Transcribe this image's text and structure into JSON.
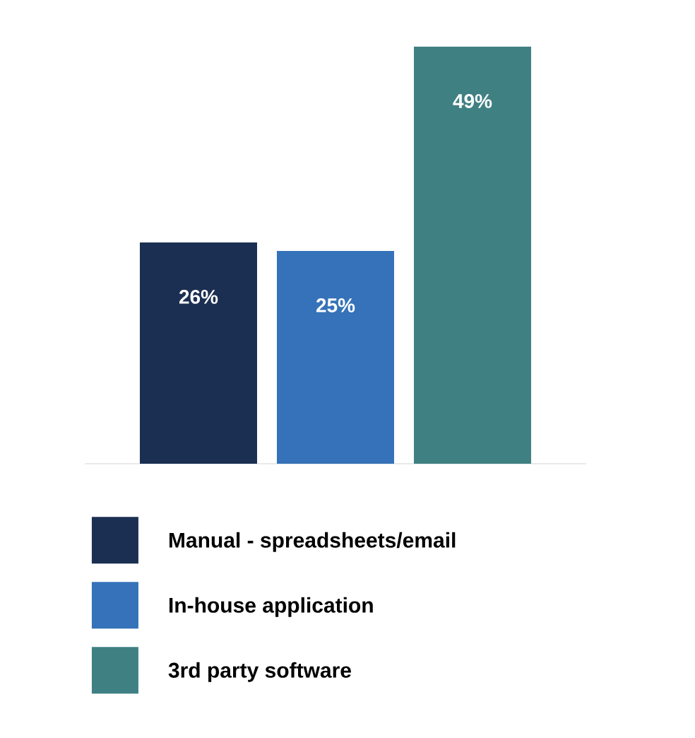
{
  "chart_data": {
    "type": "bar",
    "categories": [
      null
    ],
    "series": [
      {
        "name": "Manual - spreadsheets/email",
        "color": "#1b2f52",
        "values": [
          26
        ],
        "value_labels": [
          "26%"
        ]
      },
      {
        "name": "In-house application",
        "color": "#3572b9",
        "values": [
          25
        ],
        "value_labels": [
          "25%"
        ]
      },
      {
        "name": "3rd party software",
        "color": "#3f8083",
        "values": [
          49
        ],
        "value_labels": [
          "49%"
        ]
      }
    ],
    "legend": "bottom"
  }
}
